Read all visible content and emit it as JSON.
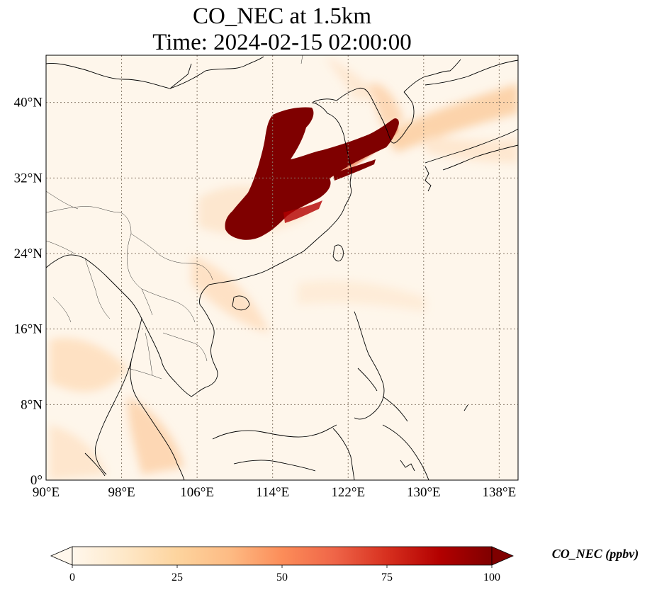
{
  "title": {
    "line1": "CO_NEC at 1.5km",
    "line2": "Time: 2024-02-15 02:00:00"
  },
  "map": {
    "projection": "PlateCarree",
    "lon_range": [
      90,
      140
    ],
    "lat_range": [
      0,
      45
    ],
    "gridlines": true,
    "gridline_style": "dotted",
    "lon_ticks": [
      {
        "value": 90,
        "label": "90°E"
      },
      {
        "value": 98,
        "label": "98°E"
      },
      {
        "value": 106,
        "label": "106°E"
      },
      {
        "value": 114,
        "label": "114°E"
      },
      {
        "value": 122,
        "label": "122°E"
      },
      {
        "value": 130,
        "label": "130°E"
      },
      {
        "value": 138,
        "label": "138°E"
      }
    ],
    "lat_ticks": [
      {
        "value": 0,
        "label": "0°"
      },
      {
        "value": 8,
        "label": "8°N"
      },
      {
        "value": 16,
        "label": "16°N"
      },
      {
        "value": 24,
        "label": "24°N"
      },
      {
        "value": 32,
        "label": "32°N"
      },
      {
        "value": 40,
        "label": "40°N"
      }
    ],
    "colors": {
      "background": "#fef6eb",
      "coastline": "#000000",
      "gridline": "#8a7a6a"
    }
  },
  "colorbar": {
    "label": "CO_NEC (ppbv)",
    "cmap": "OrRd",
    "range": [
      0,
      100
    ],
    "extend": "both",
    "ticks": [
      {
        "value": 0,
        "label": "0"
      },
      {
        "value": 25,
        "label": "25"
      },
      {
        "value": 50,
        "label": "50"
      },
      {
        "value": 75,
        "label": "75"
      },
      {
        "value": 100,
        "label": "100"
      }
    ],
    "stops": [
      "#fff7ec",
      "#fee8c8",
      "#fdd49e",
      "#fdbb84",
      "#fc8d59",
      "#ef6548",
      "#d7301f",
      "#b30000",
      "#7f0000"
    ]
  }
}
